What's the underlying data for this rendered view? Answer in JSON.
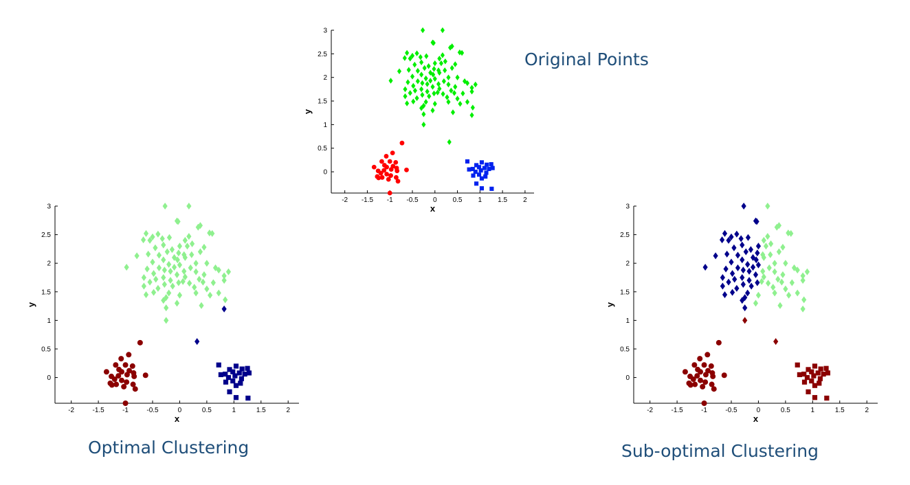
{
  "captions": {
    "original": "Original Points",
    "optimal": "Optimal Clustering",
    "suboptimal": "Sub-optimal Clustering"
  },
  "colors": {
    "green": "#00ee00",
    "red": "#ff0000",
    "blue": "#0022ee",
    "light_green": "#8ff08f",
    "dark_red": "#8b0000",
    "navy": "#00008b"
  },
  "chart_data": [
    {
      "id": "original-points",
      "type": "scatter",
      "title": "",
      "xlabel": "x",
      "ylabel": "y",
      "xlim": [
        -2.3,
        2.2
      ],
      "ylim": [
        -0.45,
        3.0
      ],
      "xticks": [
        -2,
        -1.5,
        -1,
        -0.5,
        0,
        0.5,
        1,
        1.5,
        2
      ],
      "yticks": [
        0,
        0.5,
        1,
        1.5,
        2,
        2.5,
        3
      ],
      "groups": [
        {
          "cluster": "top",
          "marker": "diamond",
          "color": "green"
        },
        {
          "cluster": "left",
          "marker": "circle",
          "color": "red"
        },
        {
          "cluster": "right",
          "marker": "square",
          "color": "blue"
        }
      ]
    },
    {
      "id": "optimal-clustering",
      "type": "scatter",
      "title": "",
      "xlabel": "x",
      "ylabel": "y",
      "xlim": [
        -2.3,
        2.2
      ],
      "ylim": [
        -0.45,
        3.0
      ],
      "xticks": [
        -2,
        -1.5,
        -1,
        -0.5,
        0,
        0.5,
        1,
        1.5,
        2
      ],
      "yticks": [
        0,
        0.5,
        1,
        1.5,
        2,
        2.5,
        3
      ],
      "groups": [
        {
          "cluster": "top",
          "marker": "diamond",
          "color": "light_green"
        },
        {
          "cluster": "left",
          "marker": "circle",
          "color": "dark_red"
        },
        {
          "cluster": "right",
          "marker": "square",
          "color": "navy"
        }
      ]
    },
    {
      "id": "suboptimal-clustering",
      "type": "scatter",
      "title": "",
      "xlabel": "x",
      "ylabel": "y",
      "xlim": [
        -2.3,
        2.2
      ],
      "ylim": [
        -0.45,
        3.0
      ],
      "xticks": [
        -2,
        -1.5,
        -1,
        -0.5,
        0,
        0.5,
        1,
        1.5,
        2
      ],
      "yticks": [
        0,
        0.5,
        1,
        1.5,
        2,
        2.5,
        3
      ],
      "groups": [
        {
          "cluster": "top-left",
          "marker": "diamond",
          "color": "navy"
        },
        {
          "cluster": "top-right",
          "marker": "diamond",
          "color": "light_green"
        },
        {
          "cluster": "bottom-outliers",
          "marker": "diamond",
          "color": "dark_red"
        },
        {
          "cluster": "left",
          "marker": "circle",
          "color": "dark_red"
        },
        {
          "cluster": "right",
          "marker": "square",
          "color": "dark_red"
        }
      ]
    }
  ],
  "points": {
    "top": [
      [
        -0.27,
        3.0
      ],
      [
        0.17,
        3.0
      ],
      [
        -0.05,
        2.74
      ],
      [
        -0.03,
        2.73
      ],
      [
        0.38,
        2.66
      ],
      [
        0.34,
        2.63
      ],
      [
        0.55,
        2.53
      ],
      [
        0.6,
        2.52
      ],
      [
        -0.62,
        2.52
      ],
      [
        -0.4,
        2.51
      ],
      [
        -0.5,
        2.46
      ],
      [
        -0.19,
        2.45
      ],
      [
        0.17,
        2.47
      ],
      [
        0.1,
        2.4
      ],
      [
        -0.32,
        2.43
      ],
      [
        -0.67,
        2.41
      ],
      [
        -0.55,
        2.4
      ],
      [
        -0.3,
        2.32
      ],
      [
        0.23,
        2.34
      ],
      [
        0.0,
        2.3
      ],
      [
        0.14,
        2.3
      ],
      [
        0.45,
        2.28
      ],
      [
        -0.45,
        2.27
      ],
      [
        -0.14,
        2.24
      ],
      [
        -0.23,
        2.2
      ],
      [
        -0.02,
        2.18
      ],
      [
        0.08,
        2.15
      ],
      [
        0.22,
        2.15
      ],
      [
        0.38,
        2.2
      ],
      [
        -0.58,
        2.16
      ],
      [
        -0.38,
        2.14
      ],
      [
        -0.79,
        2.13
      ],
      [
        -0.1,
        2.1
      ],
      [
        0.1,
        2.1
      ],
      [
        -0.3,
        2.06
      ],
      [
        -0.04,
        2.06
      ],
      [
        -0.5,
        2.02
      ],
      [
        0.3,
        2.0
      ],
      [
        0.5,
        2.0
      ],
      [
        -0.2,
        1.98
      ],
      [
        0.0,
        1.97
      ],
      [
        -0.38,
        1.92
      ],
      [
        -0.1,
        1.93
      ],
      [
        0.2,
        1.92
      ],
      [
        0.66,
        1.92
      ],
      [
        -0.6,
        1.9
      ],
      [
        -0.28,
        1.88
      ],
      [
        0.08,
        1.86
      ],
      [
        -0.98,
        1.93
      ],
      [
        -0.17,
        1.86
      ],
      [
        0.3,
        1.85
      ],
      [
        0.72,
        1.88
      ],
      [
        0.9,
        1.85
      ],
      [
        -0.48,
        1.82
      ],
      [
        -0.05,
        1.8
      ],
      [
        0.45,
        1.8
      ],
      [
        0.82,
        1.78
      ],
      [
        -0.66,
        1.75
      ],
      [
        -0.3,
        1.75
      ],
      [
        0.1,
        1.76
      ],
      [
        0.36,
        1.72
      ],
      [
        -0.44,
        1.72
      ],
      [
        -0.17,
        1.7
      ],
      [
        0.06,
        1.68
      ],
      [
        -0.02,
        1.66
      ],
      [
        -0.55,
        1.67
      ],
      [
        0.18,
        1.65
      ],
      [
        0.43,
        1.67
      ],
      [
        -0.28,
        1.63
      ],
      [
        0.62,
        1.66
      ],
      [
        0.82,
        1.7
      ],
      [
        -0.66,
        1.6
      ],
      [
        -0.13,
        1.6
      ],
      [
        0.27,
        1.58
      ],
      [
        -0.4,
        1.56
      ],
      [
        0.5,
        1.55
      ],
      [
        -0.48,
        1.49
      ],
      [
        -0.2,
        1.48
      ],
      [
        0.3,
        1.48
      ],
      [
        0.72,
        1.48
      ],
      [
        -0.62,
        1.45
      ],
      [
        0.0,
        1.44
      ],
      [
        0.56,
        1.44
      ],
      [
        -0.25,
        1.4
      ],
      [
        0.84,
        1.36
      ],
      [
        -0.3,
        1.35
      ],
      [
        -0.05,
        1.3
      ],
      [
        0.4,
        1.26
      ],
      [
        0.82,
        1.2
      ],
      [
        -0.25,
        1.22
      ],
      [
        -0.25,
        1.0
      ],
      [
        0.32,
        0.63
      ]
    ],
    "left": [
      [
        -0.73,
        0.61
      ],
      [
        -0.94,
        0.4
      ],
      [
        -1.08,
        0.33
      ],
      [
        -1.0,
        0.22
      ],
      [
        -1.18,
        0.22
      ],
      [
        -0.87,
        0.2
      ],
      [
        -0.93,
        0.12
      ],
      [
        -0.85,
        0.08
      ],
      [
        -1.12,
        0.14
      ],
      [
        -1.35,
        0.1
      ],
      [
        -1.07,
        0.1
      ],
      [
        -0.97,
        0.05
      ],
      [
        -0.63,
        0.04
      ],
      [
        -1.26,
        0.02
      ],
      [
        -1.13,
        0.03
      ],
      [
        -0.84,
        0.02
      ],
      [
        -1.2,
        -0.03
      ],
      [
        -1.07,
        -0.05
      ],
      [
        -0.98,
        -0.08
      ],
      [
        -1.28,
        -0.1
      ],
      [
        -1.17,
        -0.12
      ],
      [
        -0.86,
        -0.12
      ],
      [
        -1.03,
        -0.16
      ],
      [
        -1.25,
        -0.13
      ],
      [
        -0.82,
        -0.2
      ],
      [
        -1.0,
        -0.45
      ]
    ],
    "right": [
      [
        0.72,
        0.22
      ],
      [
        1.04,
        0.2
      ],
      [
        1.15,
        0.15
      ],
      [
        0.92,
        0.14
      ],
      [
        1.25,
        0.16
      ],
      [
        0.98,
        0.1
      ],
      [
        1.1,
        0.08
      ],
      [
        0.84,
        0.06
      ],
      [
        1.2,
        0.06
      ],
      [
        1.28,
        0.08
      ],
      [
        1.02,
        0.03
      ],
      [
        0.9,
        0.0
      ],
      [
        0.76,
        0.05
      ],
      [
        1.14,
        -0.02
      ],
      [
        0.98,
        -0.06
      ],
      [
        1.12,
        -0.1
      ],
      [
        0.85,
        -0.08
      ],
      [
        1.04,
        -0.14
      ],
      [
        0.92,
        -0.25
      ],
      [
        1.04,
        -0.35
      ],
      [
        1.26,
        -0.36
      ]
    ],
    "top-left": [
      [
        -0.27,
        3.0
      ],
      [
        -0.05,
        2.74
      ],
      [
        -0.03,
        2.73
      ],
      [
        -0.62,
        2.52
      ],
      [
        -0.4,
        2.51
      ],
      [
        -0.5,
        2.46
      ],
      [
        -0.19,
        2.45
      ],
      [
        -0.32,
        2.43
      ],
      [
        -0.67,
        2.41
      ],
      [
        -0.55,
        2.4
      ],
      [
        -0.3,
        2.32
      ],
      [
        0.0,
        2.3
      ],
      [
        -0.45,
        2.27
      ],
      [
        -0.14,
        2.24
      ],
      [
        -0.23,
        2.2
      ],
      [
        -0.02,
        2.18
      ],
      [
        -0.58,
        2.16
      ],
      [
        -0.38,
        2.14
      ],
      [
        -0.79,
        2.13
      ],
      [
        -0.1,
        2.1
      ],
      [
        -0.3,
        2.06
      ],
      [
        -0.04,
        2.06
      ],
      [
        -0.5,
        2.02
      ],
      [
        -0.2,
        1.98
      ],
      [
        0.0,
        1.97
      ],
      [
        -0.38,
        1.92
      ],
      [
        -0.1,
        1.93
      ],
      [
        -0.6,
        1.9
      ],
      [
        -0.28,
        1.88
      ],
      [
        -0.98,
        1.93
      ],
      [
        -0.17,
        1.86
      ],
      [
        -0.48,
        1.82
      ],
      [
        -0.05,
        1.8
      ],
      [
        -0.66,
        1.75
      ],
      [
        -0.3,
        1.75
      ],
      [
        -0.44,
        1.72
      ],
      [
        -0.17,
        1.7
      ],
      [
        -0.02,
        1.66
      ],
      [
        -0.55,
        1.67
      ],
      [
        -0.28,
        1.63
      ],
      [
        -0.66,
        1.6
      ],
      [
        -0.13,
        1.6
      ],
      [
        -0.4,
        1.56
      ],
      [
        -0.48,
        1.49
      ],
      [
        -0.2,
        1.48
      ],
      [
        -0.62,
        1.45
      ],
      [
        -0.25,
        1.4
      ],
      [
        -0.3,
        1.35
      ],
      [
        -0.25,
        1.22
      ]
    ],
    "top-right": [
      [
        0.17,
        3.0
      ],
      [
        0.38,
        2.66
      ],
      [
        0.34,
        2.63
      ],
      [
        0.55,
        2.53
      ],
      [
        0.6,
        2.52
      ],
      [
        0.17,
        2.47
      ],
      [
        0.1,
        2.4
      ],
      [
        0.23,
        2.34
      ],
      [
        0.14,
        2.3
      ],
      [
        0.45,
        2.28
      ],
      [
        0.08,
        2.15
      ],
      [
        0.22,
        2.15
      ],
      [
        0.38,
        2.2
      ],
      [
        0.1,
        2.1
      ],
      [
        0.3,
        2.0
      ],
      [
        0.5,
        2.0
      ],
      [
        0.2,
        1.92
      ],
      [
        0.66,
        1.92
      ],
      [
        0.08,
        1.86
      ],
      [
        0.3,
        1.85
      ],
      [
        0.72,
        1.88
      ],
      [
        0.9,
        1.85
      ],
      [
        0.45,
        1.8
      ],
      [
        0.82,
        1.78
      ],
      [
        0.1,
        1.76
      ],
      [
        0.36,
        1.72
      ],
      [
        0.06,
        1.68
      ],
      [
        0.18,
        1.65
      ],
      [
        0.43,
        1.67
      ],
      [
        0.62,
        1.66
      ],
      [
        0.82,
        1.7
      ],
      [
        0.27,
        1.58
      ],
      [
        0.5,
        1.55
      ],
      [
        0.3,
        1.48
      ],
      [
        0.72,
        1.48
      ],
      [
        0.0,
        1.44
      ],
      [
        0.56,
        1.44
      ],
      [
        0.84,
        1.36
      ],
      [
        -0.05,
        1.3
      ],
      [
        0.4,
        1.26
      ],
      [
        0.82,
        1.2
      ]
    ],
    "bottom-outliers": [
      [
        -0.25,
        1.0
      ],
      [
        0.32,
        0.63
      ]
    ],
    "top-light-optimal": [
      [
        -0.27,
        3.0
      ],
      [
        0.17,
        3.0
      ],
      [
        -0.05,
        2.74
      ],
      [
        -0.03,
        2.73
      ],
      [
        0.38,
        2.66
      ],
      [
        0.34,
        2.63
      ],
      [
        0.55,
        2.53
      ],
      [
        0.6,
        2.52
      ],
      [
        -0.62,
        2.52
      ],
      [
        -0.4,
        2.51
      ],
      [
        -0.5,
        2.46
      ],
      [
        -0.19,
        2.45
      ],
      [
        0.17,
        2.47
      ],
      [
        0.1,
        2.4
      ],
      [
        -0.32,
        2.43
      ],
      [
        -0.67,
        2.41
      ],
      [
        -0.55,
        2.4
      ],
      [
        -0.3,
        2.32
      ],
      [
        0.23,
        2.34
      ],
      [
        0.0,
        2.3
      ],
      [
        0.14,
        2.3
      ],
      [
        0.45,
        2.28
      ],
      [
        -0.45,
        2.27
      ],
      [
        -0.14,
        2.24
      ],
      [
        -0.23,
        2.2
      ],
      [
        -0.02,
        2.18
      ],
      [
        0.08,
        2.15
      ],
      [
        0.22,
        2.15
      ],
      [
        0.38,
        2.2
      ],
      [
        -0.58,
        2.16
      ],
      [
        -0.38,
        2.14
      ],
      [
        -0.79,
        2.13
      ],
      [
        -0.1,
        2.1
      ],
      [
        0.1,
        2.1
      ],
      [
        -0.3,
        2.06
      ],
      [
        -0.04,
        2.06
      ],
      [
        -0.5,
        2.02
      ],
      [
        0.3,
        2.0
      ],
      [
        0.5,
        2.0
      ],
      [
        -0.2,
        1.98
      ],
      [
        0.0,
        1.97
      ],
      [
        -0.38,
        1.92
      ],
      [
        -0.1,
        1.93
      ],
      [
        0.2,
        1.92
      ],
      [
        0.66,
        1.92
      ],
      [
        -0.6,
        1.9
      ],
      [
        -0.28,
        1.88
      ],
      [
        0.08,
        1.86
      ],
      [
        -0.98,
        1.93
      ],
      [
        -0.17,
        1.86
      ],
      [
        0.3,
        1.85
      ],
      [
        0.72,
        1.88
      ],
      [
        0.9,
        1.85
      ],
      [
        -0.48,
        1.82
      ],
      [
        -0.05,
        1.8
      ],
      [
        0.45,
        1.8
      ],
      [
        0.82,
        1.78
      ],
      [
        -0.66,
        1.75
      ],
      [
        -0.3,
        1.75
      ],
      [
        0.1,
        1.76
      ],
      [
        0.36,
        1.72
      ],
      [
        -0.44,
        1.72
      ],
      [
        -0.17,
        1.7
      ],
      [
        0.06,
        1.68
      ],
      [
        -0.02,
        1.66
      ],
      [
        -0.55,
        1.67
      ],
      [
        0.18,
        1.65
      ],
      [
        0.43,
        1.67
      ],
      [
        -0.28,
        1.63
      ],
      [
        0.62,
        1.66
      ],
      [
        0.82,
        1.7
      ],
      [
        -0.66,
        1.6
      ],
      [
        -0.13,
        1.6
      ],
      [
        0.27,
        1.58
      ],
      [
        -0.4,
        1.56
      ],
      [
        0.5,
        1.55
      ],
      [
        -0.48,
        1.49
      ],
      [
        -0.2,
        1.48
      ],
      [
        0.3,
        1.48
      ],
      [
        0.72,
        1.48
      ],
      [
        -0.62,
        1.45
      ],
      [
        0.0,
        1.44
      ],
      [
        0.56,
        1.44
      ],
      [
        -0.25,
        1.4
      ],
      [
        0.84,
        1.36
      ],
      [
        -0.3,
        1.35
      ],
      [
        -0.05,
        1.3
      ],
      [
        0.4,
        1.26
      ],
      [
        -0.25,
        1.22
      ],
      [
        -0.25,
        1.0
      ]
    ],
    "optimal-navy-outliers": [
      [
        0.82,
        1.2
      ],
      [
        0.32,
        0.63
      ]
    ]
  }
}
